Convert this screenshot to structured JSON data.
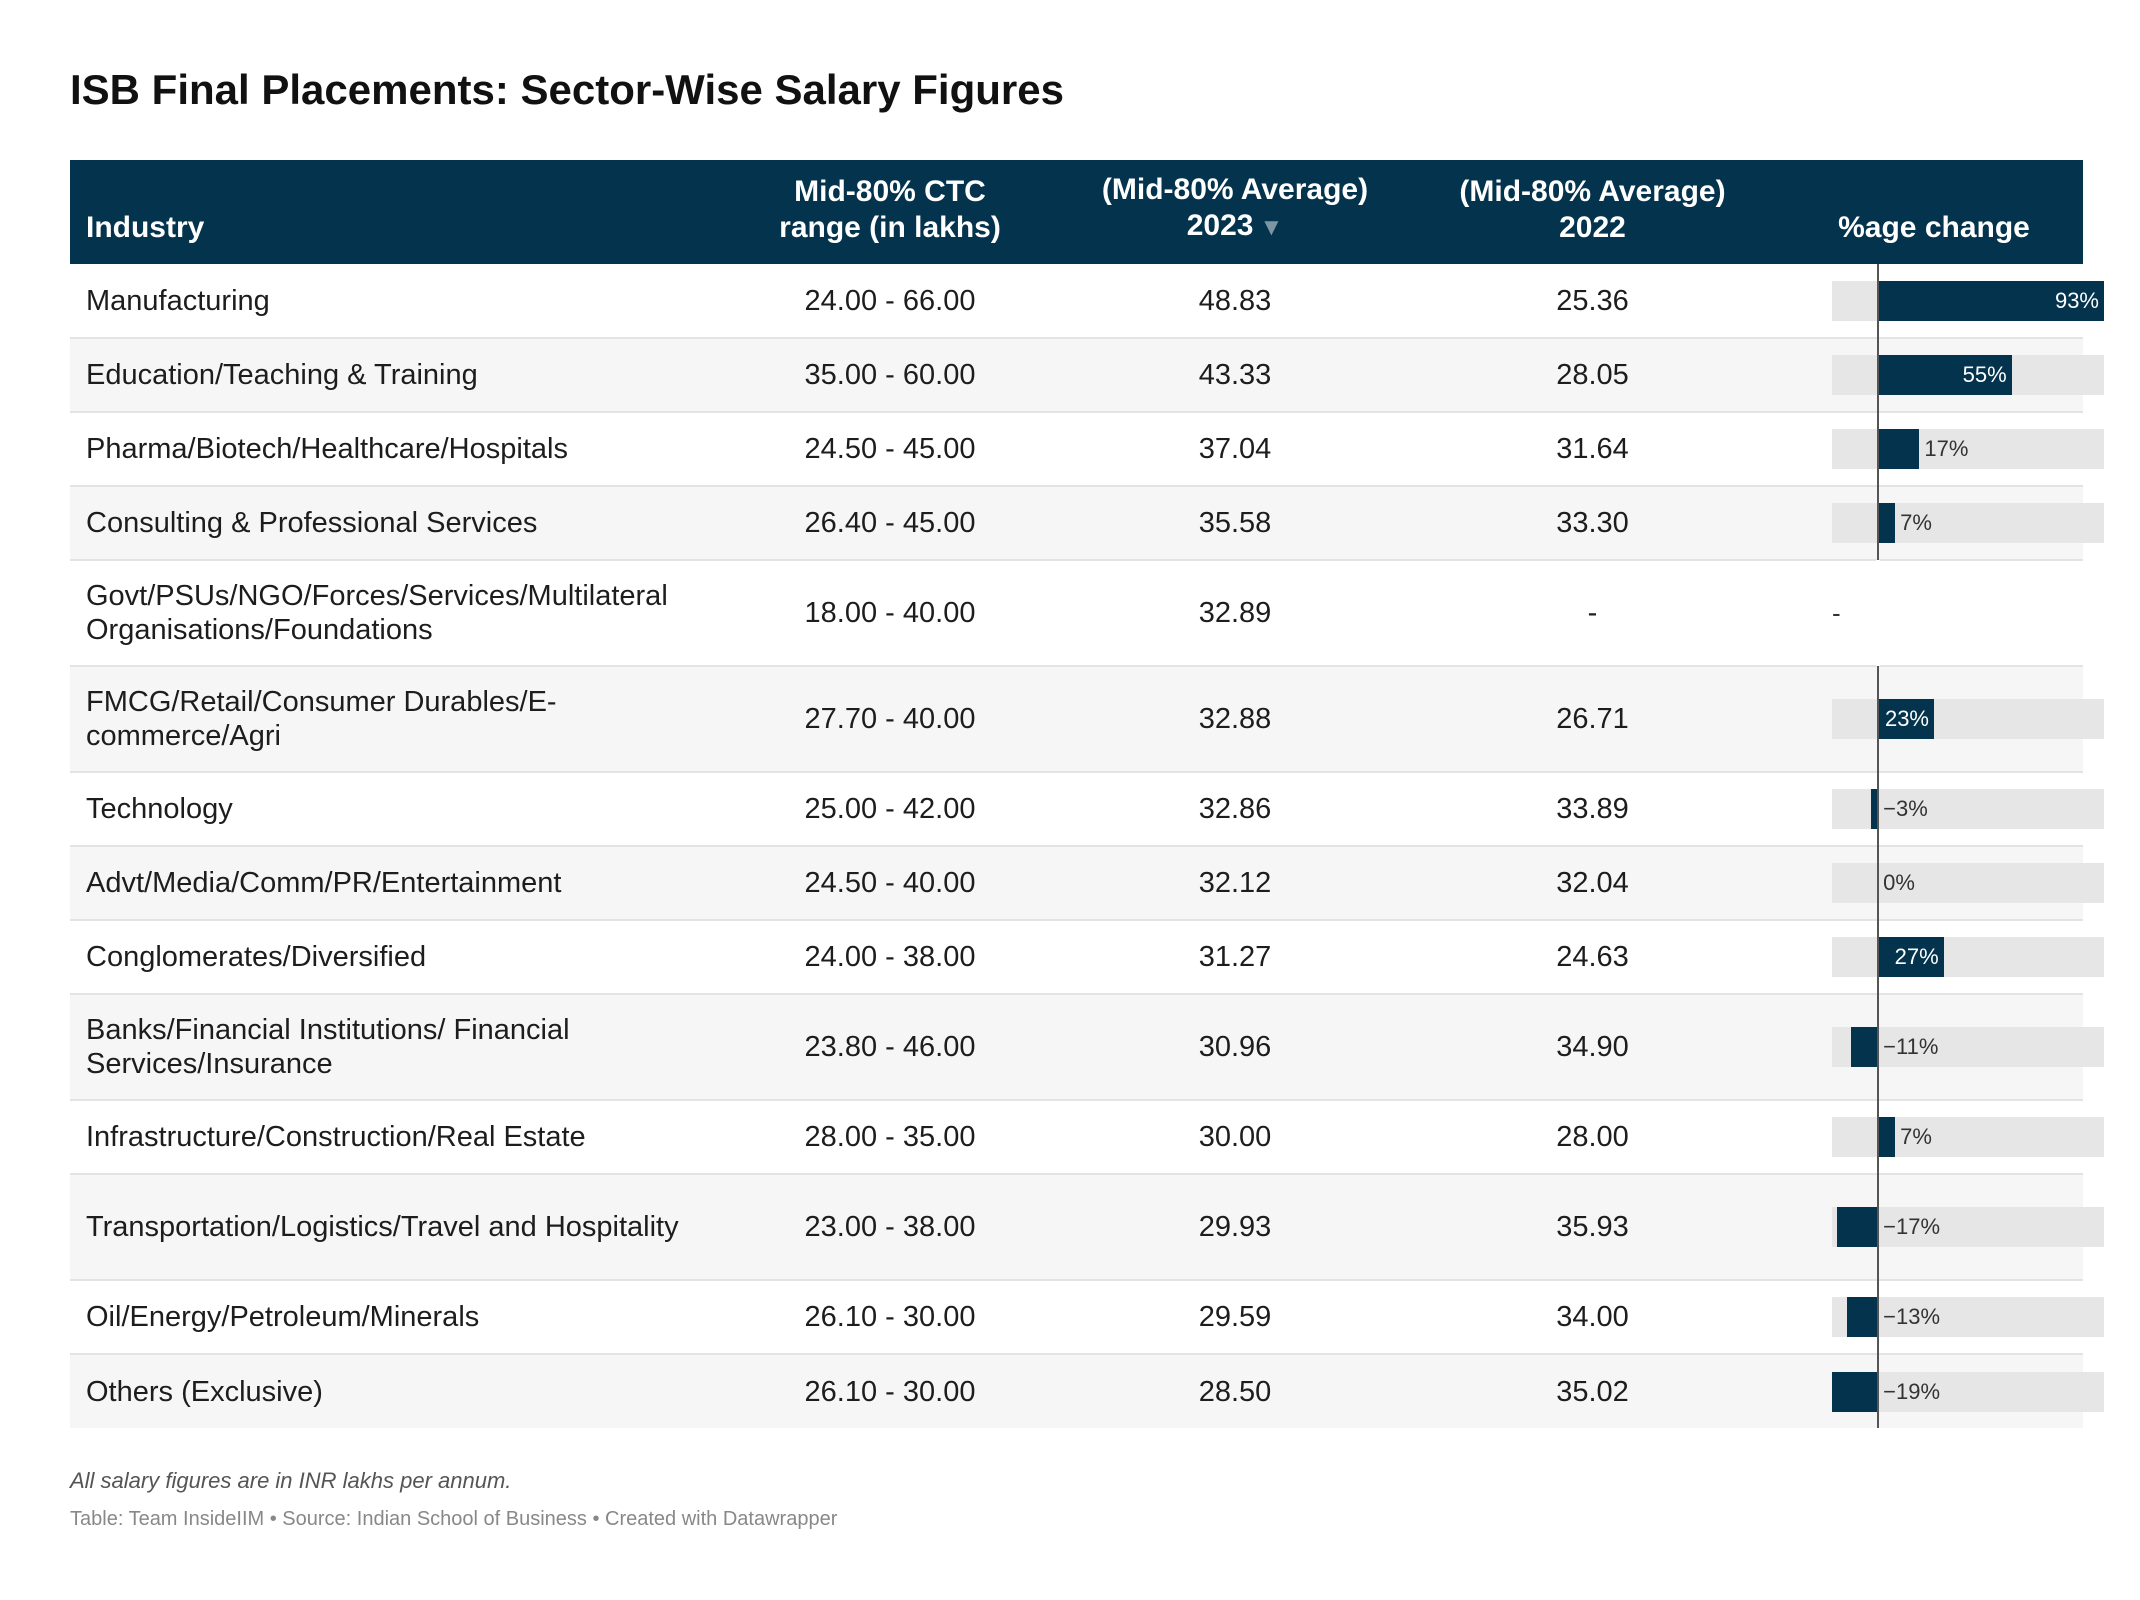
{
  "title": "ISB Final Placements: Sector-Wise Salary Figures",
  "columns": {
    "industry": "Industry",
    "range_line1": "Mid-80% CTC",
    "range_line2": "range (in lakhs)",
    "avg2023_line1": "(Mid-80% Average)",
    "avg2023_line2": "2023",
    "avg2022_line1": "(Mid-80% Average)",
    "avg2022_line2": "2022",
    "change": "%age change"
  },
  "notes": "All salary figures are in INR lakhs per annum.",
  "source": "Table: Team InsideIIM • Source: Indian School of Business • Created with Datawrapper",
  "colors": {
    "header_bg": "#03334d",
    "bar_fill": "#03334d",
    "bar_bg": "#e6e6e6"
  },
  "chart_data": {
    "type": "table",
    "title": "ISB Final Placements: Sector-Wise Salary Figures",
    "sort": "2023 descending",
    "change_scale": [
      -19,
      93
    ],
    "rows": [
      {
        "industry": "Manufacturing",
        "range": "24.00 - 66.00",
        "avg2023": "48.83",
        "avg2022": "25.36",
        "change": 93,
        "change_label": "93%"
      },
      {
        "industry": "Education/Teaching & Training",
        "range": "35.00 - 60.00",
        "avg2023": "43.33",
        "avg2022": "28.05",
        "change": 55,
        "change_label": "55%"
      },
      {
        "industry": "Pharma/Biotech/Healthcare/Hospitals",
        "range": "24.50 - 45.00",
        "avg2023": "37.04",
        "avg2022": "31.64",
        "change": 17,
        "change_label": "17%"
      },
      {
        "industry": "Consulting & Professional Services",
        "range": "26.40 - 45.00",
        "avg2023": "35.58",
        "avg2022": "33.30",
        "change": 7,
        "change_label": "7%"
      },
      {
        "industry": "Govt/PSUs/NGO/Forces/Services/Multilateral Organisations/Foundations",
        "range": "18.00 - 40.00",
        "avg2023": "32.89",
        "avg2022": "-",
        "change": null,
        "change_label": "-"
      },
      {
        "industry": "FMCG/Retail/Consumer Durables/E-commerce/Agri",
        "range": "27.70 - 40.00",
        "avg2023": "32.88",
        "avg2022": "26.71",
        "change": 23,
        "change_label": "23%"
      },
      {
        "industry": "Technology",
        "range": "25.00 - 42.00",
        "avg2023": "32.86",
        "avg2022": "33.89",
        "change": -3,
        "change_label": "−3%"
      },
      {
        "industry": "Advt/Media/Comm/PR/Entertainment",
        "range": "24.50 - 40.00",
        "avg2023": "32.12",
        "avg2022": "32.04",
        "change": 0,
        "change_label": "0%"
      },
      {
        "industry": "Conglomerates/Diversified",
        "range": "24.00 - 38.00",
        "avg2023": "31.27",
        "avg2022": "24.63",
        "change": 27,
        "change_label": "27%"
      },
      {
        "industry": "Banks/Financial Institutions/ Financial Services/Insurance",
        "range": "23.80 - 46.00",
        "avg2023": "30.96",
        "avg2022": "34.90",
        "change": -11,
        "change_label": "−11%"
      },
      {
        "industry": "Infrastructure/Construction/Real Estate",
        "range": "28.00 - 35.00",
        "avg2023": "30.00",
        "avg2022": "28.00",
        "change": 7,
        "change_label": "7%"
      },
      {
        "industry": "Transportation/Logistics/Travel and Hospitality",
        "range": "23.00 - 38.00",
        "avg2023": "29.93",
        "avg2022": "35.93",
        "change": -17,
        "change_label": "−17%"
      },
      {
        "industry": "Oil/Energy/Petroleum/Minerals",
        "range": "26.10 - 30.00",
        "avg2023": "29.59",
        "avg2022": "34.00",
        "change": -13,
        "change_label": "−13%"
      },
      {
        "industry": "Others (Exclusive)",
        "range": "26.10 - 30.00",
        "avg2023": "28.50",
        "avg2022": "35.02",
        "change": -19,
        "change_label": "−19%"
      }
    ]
  }
}
